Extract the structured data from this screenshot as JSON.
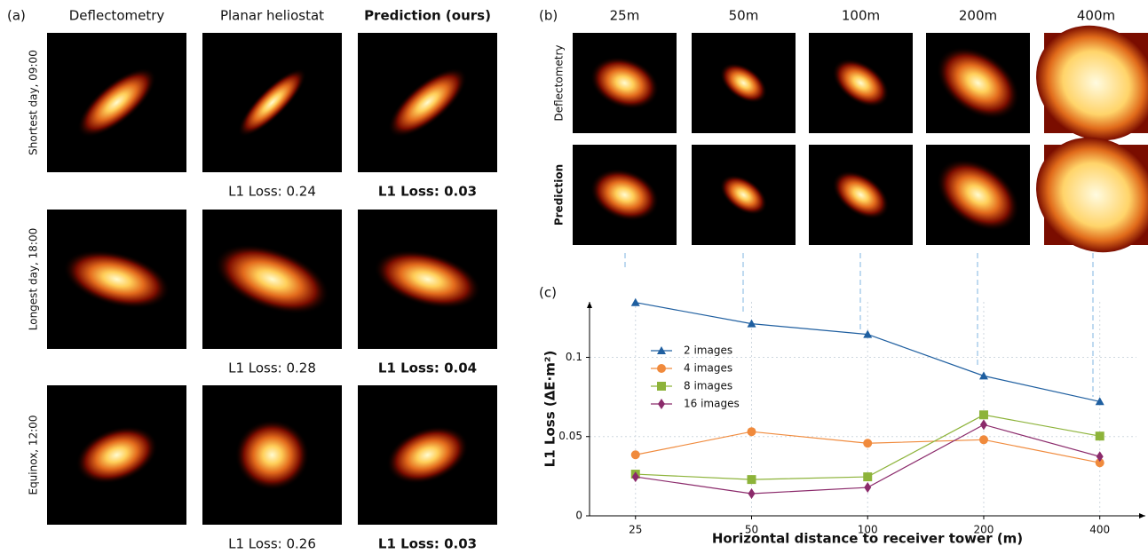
{
  "panel_a": {
    "label": "(a)",
    "columns": [
      "Deflectometry",
      "Planar heliostat",
      "Prediction (ours)"
    ],
    "rows": [
      {
        "label": "Shortest day, 09:00",
        "planar_loss": "L1 Loss: 0.24",
        "prediction_loss": "L1 Loss: 0.03"
      },
      {
        "label": "Longest day, 18:00",
        "planar_loss": "L1 Loss: 0.28",
        "prediction_loss": "L1 Loss: 0.04"
      },
      {
        "label": "Equinox, 12:00",
        "planar_loss": "L1 Loss: 0.26",
        "prediction_loss": "L1 Loss: 0.03"
      }
    ]
  },
  "panel_b": {
    "label": "(b)",
    "columns": [
      "25m",
      "50m",
      "100m",
      "200m",
      "400m"
    ],
    "rows": [
      "Deflectometry",
      "Prediction"
    ]
  },
  "panel_c": {
    "label": "(c)",
    "chart_data": {
      "type": "line",
      "ylabel": "L1 Loss (ΔE·m²)",
      "xlabel": "Horizontal distance to receiver tower (m)",
      "x": [
        25,
        50,
        100,
        200,
        400
      ],
      "xscale": "log",
      "xlim": [
        19,
        525
      ],
      "xticks": [
        25,
        50,
        100,
        200,
        400
      ],
      "ylim": [
        0,
        0.135
      ],
      "yticks": [
        0,
        0.05,
        0.1
      ],
      "grid": true,
      "series": [
        {
          "name": "2 images",
          "color": "#1f5fa0",
          "marker": "triangle",
          "values": [
            0.1346,
            0.1212,
            0.1145,
            0.0883,
            0.0721
          ]
        },
        {
          "name": "4 images",
          "color": "#f08a3c",
          "marker": "circle",
          "values": [
            0.0385,
            0.0531,
            0.0458,
            0.048,
            0.0335
          ]
        },
        {
          "name": "8 images",
          "color": "#8db33a",
          "marker": "square",
          "values": [
            0.0263,
            0.0229,
            0.0246,
            0.0637,
            0.0503
          ]
        },
        {
          "name": "16 images",
          "color": "#8b2a6b",
          "marker": "diamond",
          "values": [
            0.0246,
            0.014,
            0.0179,
            0.0575,
            0.0374
          ]
        }
      ]
    }
  }
}
